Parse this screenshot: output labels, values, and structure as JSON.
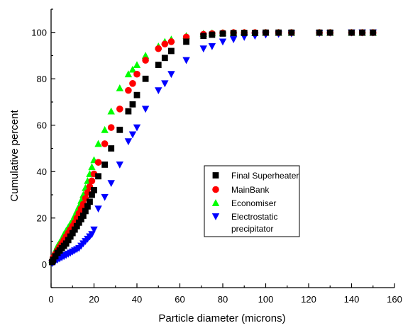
{
  "chart_data": {
    "type": "scatter",
    "xlabel": "Particle diameter (microns)",
    "ylabel": "Cumulative percent",
    "xlim": [
      0,
      160
    ],
    "ylim": [
      -10,
      110
    ],
    "xticks": [
      0,
      20,
      40,
      60,
      80,
      100,
      120,
      140,
      160
    ],
    "yticks": [
      0,
      20,
      40,
      60,
      80,
      100
    ],
    "grid": false,
    "legend_position": "center-right",
    "series": [
      {
        "name": "Final Superheater",
        "color": "#000000",
        "marker": "square",
        "x": [
          0.5,
          1,
          2,
          3,
          4,
          5,
          6,
          7,
          8,
          9,
          10,
          11,
          12,
          13,
          14,
          15,
          16,
          17,
          18,
          19,
          20,
          22,
          25,
          28,
          32,
          36,
          38,
          40,
          44,
          50,
          53,
          56,
          63,
          71,
          75,
          80,
          85,
          90,
          95,
          100,
          106,
          112,
          125,
          130,
          140,
          145,
          150
        ],
        "y": [
          1,
          2,
          3.5,
          5,
          6,
          7,
          8,
          9,
          10.5,
          12,
          13.5,
          15,
          16.5,
          18,
          19.5,
          21,
          23,
          25,
          27,
          30,
          32,
          38,
          43,
          50,
          58,
          66,
          69,
          73,
          80,
          86,
          89,
          92,
          96,
          98.5,
          99,
          99.5,
          99.7,
          99.8,
          99.8,
          99.9,
          99.9,
          99.9,
          99.9,
          99.9,
          99.9,
          99.9,
          99.9
        ]
      },
      {
        "name": "MainBank",
        "color": "#ff0000",
        "marker": "circle",
        "x": [
          0.5,
          1,
          2,
          3,
          4,
          5,
          6,
          7,
          8,
          9,
          10,
          11,
          12,
          13,
          14,
          15,
          16,
          17,
          18,
          19,
          20,
          22,
          25,
          28,
          32,
          36,
          38,
          40,
          44,
          50,
          53,
          56,
          63,
          71,
          75,
          80,
          85,
          90,
          95,
          100,
          106,
          112,
          125,
          130,
          140,
          145,
          150
        ],
        "y": [
          1.5,
          3,
          4.5,
          6,
          7.5,
          9,
          10.5,
          12,
          13.5,
          15,
          16.5,
          18,
          20,
          22,
          24,
          26,
          28.5,
          31,
          33.5,
          36,
          39,
          44,
          52,
          59,
          67,
          75,
          78,
          82,
          88,
          93,
          95,
          96,
          98,
          99.2,
          99.5,
          99.8,
          99.9,
          99.9,
          99.9,
          99.9,
          99.9,
          99.9,
          99.9,
          99.9,
          99.9,
          99.9,
          99.9
        ]
      },
      {
        "name": "Economiser",
        "color": "#00ff00",
        "marker": "triangle-up",
        "x": [
          0.5,
          1,
          2,
          3,
          4,
          5,
          6,
          7,
          8,
          9,
          10,
          11,
          12,
          13,
          14,
          15,
          16,
          17,
          18,
          19,
          20,
          22,
          25,
          28,
          32,
          36,
          38,
          40,
          44,
          50,
          53,
          56,
          63,
          71,
          75,
          80,
          85,
          90,
          95,
          100,
          106,
          112,
          125,
          130,
          140,
          145,
          150
        ],
        "y": [
          2,
          4,
          6,
          8,
          9.5,
          11,
          13,
          14.5,
          16,
          17.5,
          19,
          21,
          23,
          25,
          27.5,
          30,
          33,
          36,
          39,
          42,
          45,
          52,
          58,
          66,
          76,
          82,
          84,
          86,
          90,
          94,
          96,
          97,
          98.5,
          99.5,
          99.7,
          99.8,
          99.9,
          99.9,
          99.9,
          99.9,
          99.9,
          99.9,
          99.9,
          99.9,
          99.9,
          99.9,
          99.9
        ]
      },
      {
        "name": "Electrostatic precipitator",
        "color": "#0000ff",
        "marker": "triangle-down",
        "x": [
          0.5,
          1,
          2,
          3,
          4,
          5,
          6,
          7,
          8,
          9,
          10,
          11,
          12,
          13,
          14,
          15,
          16,
          17,
          18,
          19,
          20,
          22,
          25,
          28,
          32,
          36,
          38,
          40,
          44,
          50,
          53,
          56,
          63,
          71,
          75,
          80,
          85,
          90,
          95,
          100,
          106,
          112,
          125,
          130,
          140,
          145,
          150
        ],
        "y": [
          0.5,
          1,
          1.5,
          2,
          2.5,
          3,
          3.5,
          4,
          4.5,
          5,
          5.5,
          6,
          6.5,
          7,
          8,
          9,
          10,
          11,
          12,
          13,
          15,
          24,
          29,
          35,
          43,
          53,
          56,
          59,
          67,
          75,
          78,
          82,
          88,
          93,
          94,
          96,
          97,
          98,
          98.5,
          99,
          99.3,
          99.5,
          99.7,
          99.8,
          99.9,
          99.9,
          99.9
        ]
      }
    ]
  },
  "legend": {
    "items": [
      {
        "lines": [
          "Final Superheater"
        ]
      },
      {
        "lines": [
          "MainBank"
        ]
      },
      {
        "lines": [
          "Economiser"
        ]
      },
      {
        "lines": [
          "Electrostatic",
          "precipitator"
        ]
      }
    ]
  }
}
